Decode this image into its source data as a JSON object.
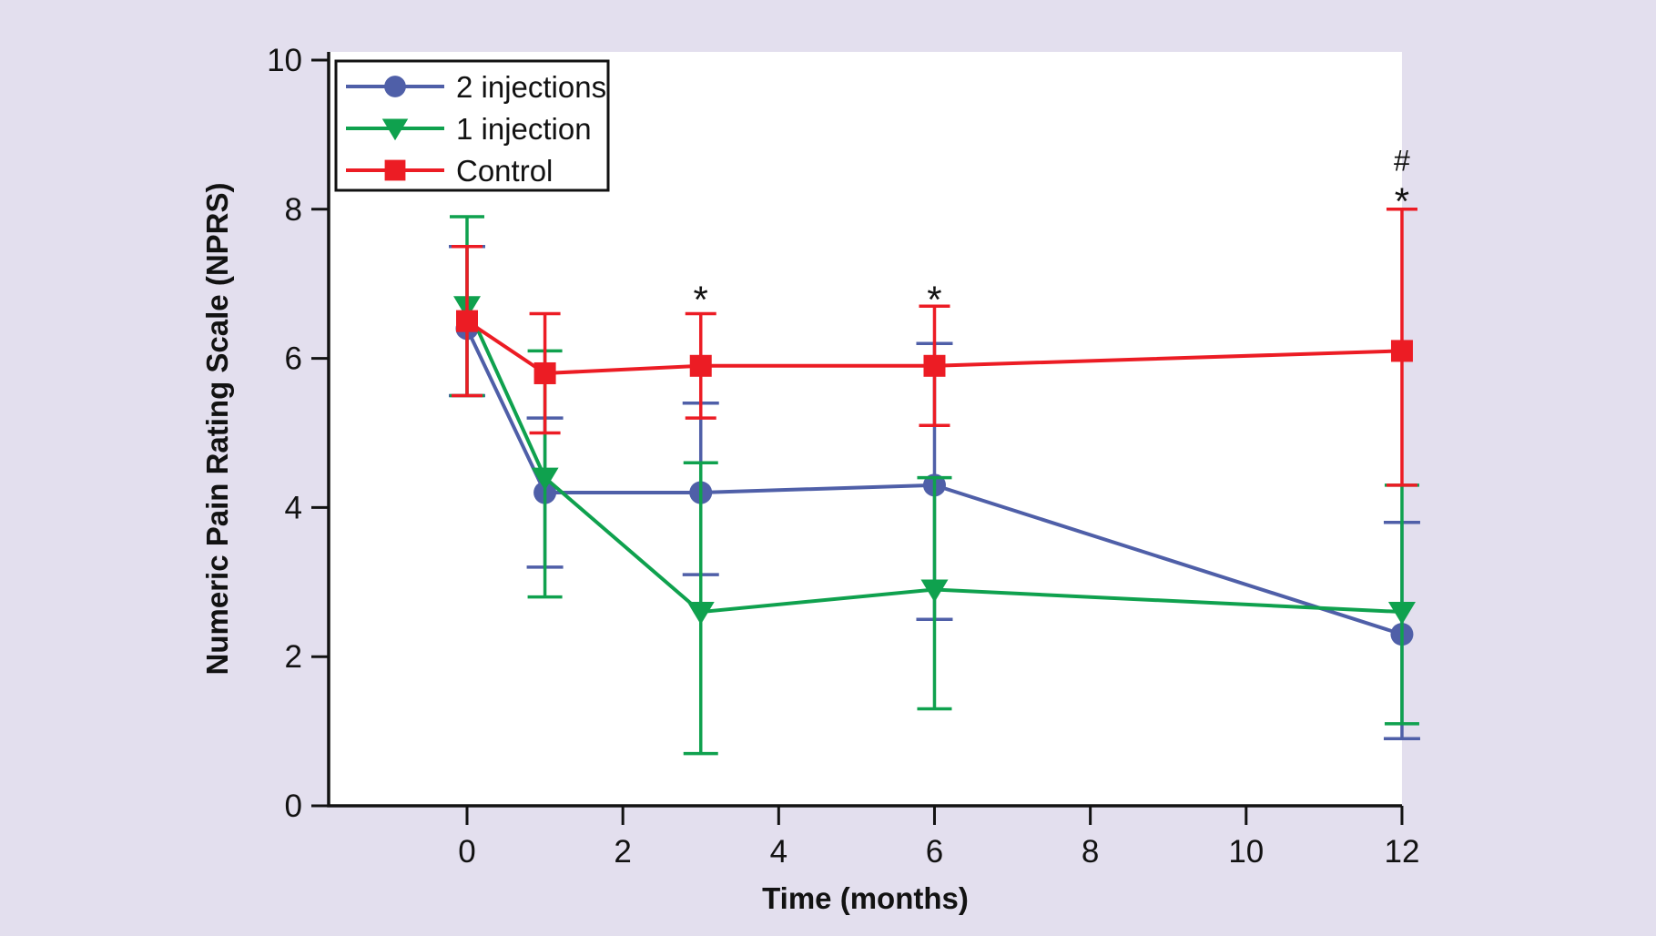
{
  "chart_data": {
    "type": "line",
    "title": "",
    "xlabel": "Time (months)",
    "ylabel": "Numeric Pain Rating Scale (NPRS)",
    "x_ticks": [
      0,
      2,
      4,
      6,
      8,
      10,
      12
    ],
    "y_ticks": [
      0,
      2,
      4,
      6,
      8,
      10
    ],
    "xlim_months": [
      -1.78,
      12
    ],
    "ylim": [
      0,
      10
    ],
    "grid": false,
    "x": [
      0,
      1,
      3,
      6,
      12
    ],
    "series": [
      {
        "name": "2 injections",
        "marker": "circle",
        "color": "#4f5fa8",
        "values": [
          6.4,
          4.2,
          4.2,
          4.3,
          2.3
        ],
        "err_low": [
          5.5,
          3.2,
          3.1,
          2.5,
          0.9
        ],
        "err_high": [
          7.5,
          5.2,
          5.4,
          6.2,
          3.8
        ]
      },
      {
        "name": "1 injection",
        "marker": "triangle-down",
        "color": "#0fa14e",
        "values": [
          6.7,
          4.4,
          2.6,
          2.9,
          2.6
        ],
        "err_low": [
          5.5,
          2.8,
          0.7,
          1.3,
          1.1
        ],
        "err_high": [
          7.9,
          6.1,
          4.6,
          4.4,
          4.3
        ]
      },
      {
        "name": "Control",
        "marker": "square",
        "color": "#ec1c24",
        "values": [
          6.5,
          5.8,
          5.9,
          5.9,
          6.1
        ],
        "err_low": [
          5.5,
          5.0,
          5.2,
          5.1,
          4.3
        ],
        "err_high": [
          7.5,
          6.6,
          6.6,
          6.7,
          8.0
        ]
      }
    ],
    "annotations": [
      {
        "text": "*",
        "x": 3,
        "y": 6.93
      },
      {
        "text": "*",
        "x": 6,
        "y": 6.93
      },
      {
        "text": "#",
        "x": 12,
        "y": 8.65
      },
      {
        "text": "*",
        "x": 12,
        "y": 8.25
      }
    ],
    "legend": {
      "position": "top-left",
      "entries": [
        "2 injections",
        "1 injection",
        "Control"
      ]
    },
    "colors": {
      "background": "#e3dfee",
      "plot_background": "#ffffff",
      "axis": "#121212"
    }
  }
}
